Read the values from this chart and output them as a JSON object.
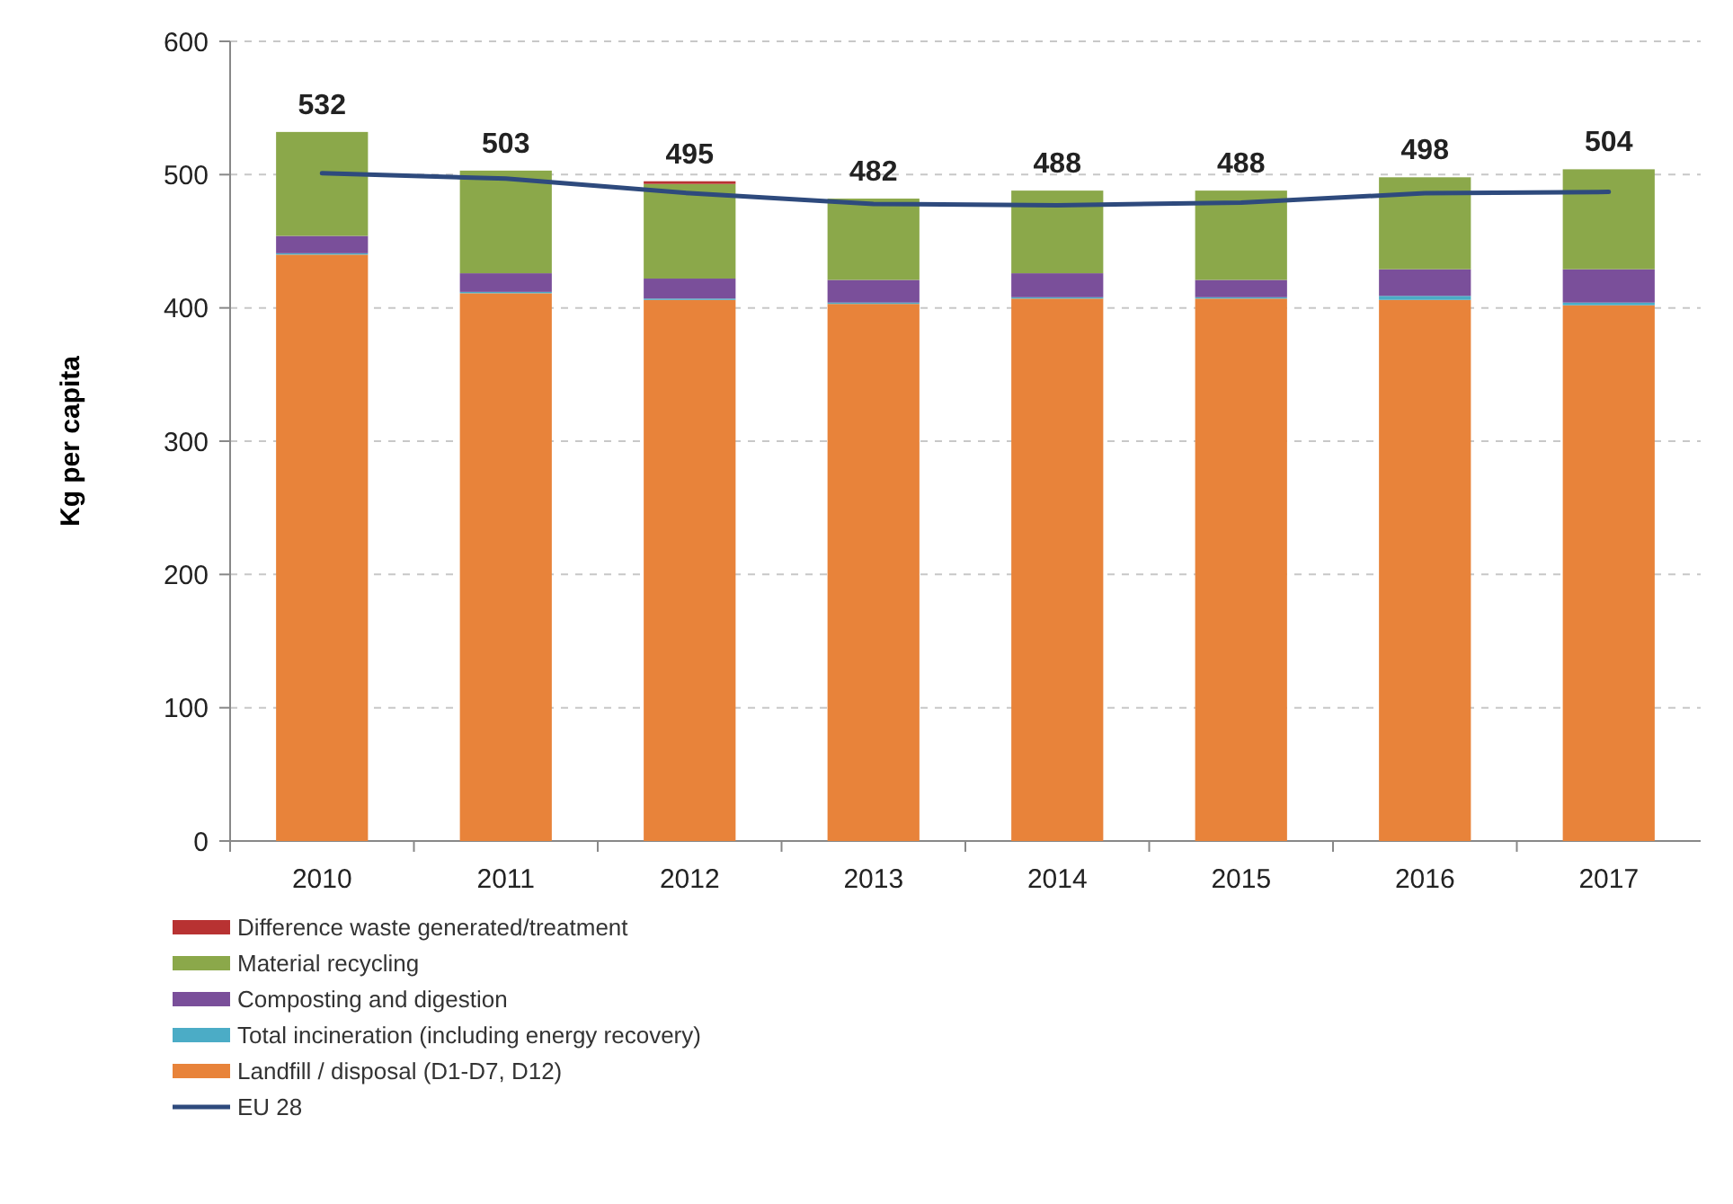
{
  "chart_data": {
    "type": "bar",
    "stacked": true,
    "ylabel": "Kg per capita",
    "categories": [
      "2010",
      "2011",
      "2012",
      "2013",
      "2014",
      "2015",
      "2016",
      "2017"
    ],
    "series": [
      {
        "name": "Landfill / disposal (D1-D7, D12)",
        "color": "#e8833a",
        "values": [
          440,
          411,
          406,
          403,
          407,
          407,
          406,
          402
        ]
      },
      {
        "name": "Total incineration (including energy recovery)",
        "color": "#4bacc6",
        "values": [
          1,
          1,
          1,
          1,
          1,
          1,
          3,
          2
        ]
      },
      {
        "name": "Composting and digestion",
        "color": "#7a4f9a",
        "values": [
          13,
          14,
          15,
          17,
          18,
          13,
          20,
          25
        ]
      },
      {
        "name": "Material recycling",
        "color": "#8ba84a",
        "values": [
          78,
          77,
          71,
          61,
          62,
          67,
          69,
          75
        ]
      },
      {
        "name": "Difference waste generated/treatment",
        "color": "#b83232",
        "values": [
          0,
          0,
          2,
          0,
          0,
          0,
          0,
          0
        ]
      },
      {
        "name": "EU 28",
        "type": "line",
        "color": "#2e4a7d",
        "values": [
          501,
          497,
          486,
          478,
          477,
          479,
          486,
          487
        ]
      }
    ],
    "totals": [
      "532",
      "503",
      "495",
      "482",
      "488",
      "488",
      "498",
      "504"
    ],
    "ylim": [
      0,
      600
    ],
    "yticks": [
      0,
      100,
      200,
      300,
      400,
      500,
      600
    ],
    "grid": "y",
    "legend": "bottom",
    "marker": "none",
    "line_style": "solid"
  }
}
